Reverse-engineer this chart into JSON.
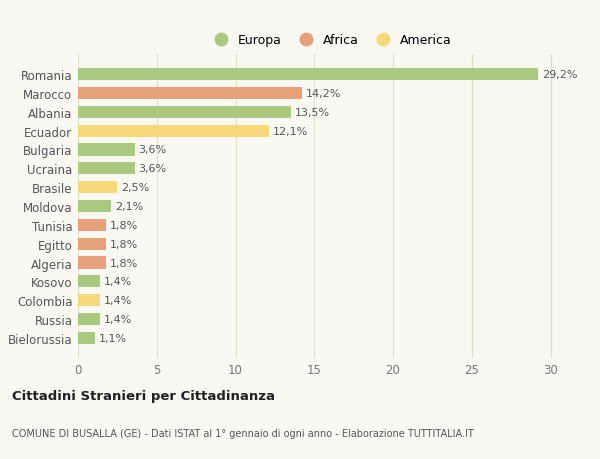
{
  "countries": [
    "Romania",
    "Marocco",
    "Albania",
    "Ecuador",
    "Bulgaria",
    "Ucraina",
    "Brasile",
    "Moldova",
    "Tunisia",
    "Egitto",
    "Algeria",
    "Kosovo",
    "Colombia",
    "Russia",
    "Bielorussia"
  ],
  "values": [
    29.2,
    14.2,
    13.5,
    12.1,
    3.6,
    3.6,
    2.5,
    2.1,
    1.8,
    1.8,
    1.8,
    1.4,
    1.4,
    1.4,
    1.1
  ],
  "labels": [
    "29,2%",
    "14,2%",
    "13,5%",
    "12,1%",
    "3,6%",
    "3,6%",
    "2,5%",
    "2,1%",
    "1,8%",
    "1,8%",
    "1,8%",
    "1,4%",
    "1,4%",
    "1,4%",
    "1,1%"
  ],
  "continents": [
    "Europa",
    "Africa",
    "Europa",
    "America",
    "Europa",
    "Europa",
    "America",
    "Europa",
    "Africa",
    "Africa",
    "Africa",
    "Europa",
    "America",
    "Europa",
    "Europa"
  ],
  "colors": {
    "Europa": "#a8c97f",
    "Africa": "#e8a07a",
    "America": "#f5d97a"
  },
  "legend_order": [
    "Europa",
    "Africa",
    "America"
  ],
  "title": "Cittadini Stranieri per Cittadinanza",
  "subtitle": "COMUNE DI BUSALLA (GE) - Dati ISTAT al 1° gennaio di ogni anno - Elaborazione TUTTITALIA.IT",
  "xlim": [
    0,
    32
  ],
  "xticks": [
    0,
    5,
    10,
    15,
    20,
    25,
    30
  ],
  "background_color": "#f9f9f2",
  "grid_color": "#ddddcc",
  "bar_height": 0.65,
  "label_fontsize": 8,
  "ytick_fontsize": 8.5,
  "xtick_fontsize": 8.5
}
